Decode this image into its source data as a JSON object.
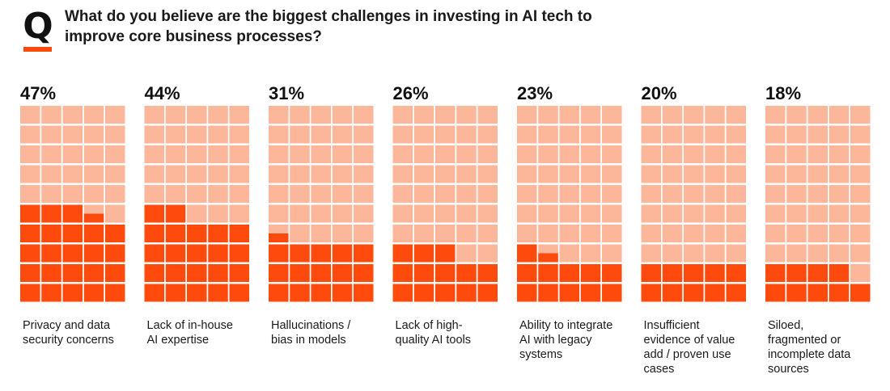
{
  "header": {
    "badge_letter": "Q",
    "question": "What do you believe are the biggest challenges in investing in AI tech to improve core business processes?"
  },
  "colors": {
    "filled": "#ff4a0d",
    "empty": "#fcb69a",
    "text": "#1a1a1a"
  },
  "chart_data": {
    "type": "waffle",
    "title": "What do you believe are the biggest challenges in investing in AI tech to improve core business processes?",
    "units_per_grid": 50,
    "grid_columns": 5,
    "grid_rows": 10,
    "categories": [
      "Privacy and data\nsecurity concerns",
      "Lack of in-house\nAI expertise",
      "Hallucinations /\nbias in models",
      "Lack of high-\nquality AI tools",
      "Ability to integrate\nAI with legacy\nsystems",
      "Insufficient\nevidence of value\nadd / proven use\ncases",
      "Siloed,\nfragmented or\nincomplete data\nsources"
    ],
    "values": [
      47,
      44,
      31,
      26,
      23,
      20,
      18
    ],
    "value_labels": [
      "47%",
      "44%",
      "31%",
      "26%",
      "23%",
      "20%",
      "18%"
    ]
  }
}
